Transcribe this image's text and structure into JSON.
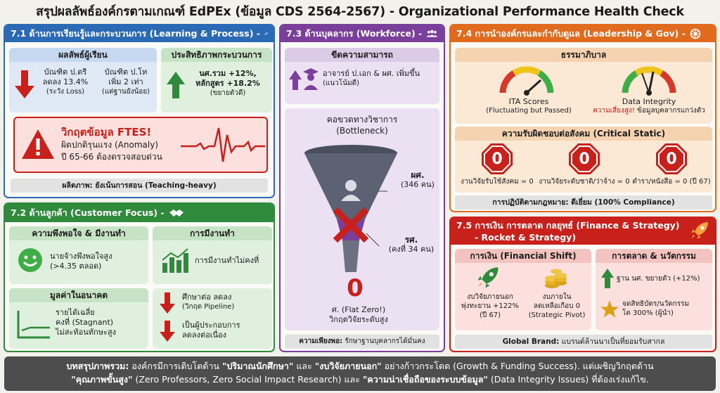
{
  "title": "สรุปผลลัพธ์องค์กรตามเกณฑ์ EdPEx (ข้อมูล CDS 2564-2567) - Organizational Performance Health Check",
  "s71": {
    "header": "7.1 ด้านการเรียนรู้และกระบวนการ (Learning & Process) -",
    "learner": {
      "title": "ผลลัพธ์ผู้เรียน",
      "left": [
        "บัณฑิต ป.ตรี",
        "ลดลง 13.4%",
        "(ระวัง Loss)"
      ],
      "right": [
        "บัณฑิต ป.โท",
        "เพิ่ม 2 เท่า",
        "(แต่ฐานยังน้อย)"
      ]
    },
    "process": {
      "title": "ประสิทธิภาพกระบวนการ",
      "lines": [
        "นศ.รวม +12%,",
        "หลักสูตร +18.2%",
        "(ขยายตัวดี)"
      ]
    },
    "alert": {
      "title": "วิกฤตข้อมูล FTES!",
      "lines": [
        "ผิดปกติรุนแรง (Anomaly)",
        "ปี 65-66 ต้องตรวจสอบด่วน"
      ]
    },
    "footer": "ผลิตภาพ: ยังเน้นการสอน (Teaching-heavy)"
  },
  "s72": {
    "header": "7.2 ด้านลูกค้า (Customer Focus) -",
    "satisfaction": {
      "title": "ความพึงพอใจ & มีงานทำ",
      "lines": [
        "นายจ้างพึงพอใจสูง",
        "(>4.35 ตลอด)"
      ]
    },
    "employment": {
      "title": "การมีงานทำ",
      "text": "การมีงานทำไม่คงที่"
    },
    "future": {
      "title": "มูลค่าในอนาคต",
      "lines": [
        "รายได้เฉลี่ย",
        "คงที่ (Stagnant)",
        "ไม่สะท้อนทักษะสูง"
      ]
    },
    "pipeline": {
      "a": [
        "ศึกษาต่อ ลดลง",
        "(วิกฤต Pipeline)"
      ],
      "b": [
        "เป็นผู้ประกอบการ",
        "ลดลงต่อเนื่อง"
      ]
    }
  },
  "s73": {
    "header": "7.3 ด้านบุคลากร (Workforce) -",
    "capability": {
      "title": "ขีดความสามารถ",
      "lines": [
        "อาจารย์ ป.เอก & ผศ. เพิ่มขึ้น",
        "(แนวโน้มดี)"
      ]
    },
    "bottleneck": {
      "title": [
        "คอขวดทางวิชาการ",
        "(Bottleneck)"
      ],
      "asst": [
        "ผศ.",
        "(346 คน)"
      ],
      "assoc": [
        "รศ.",
        "(คงที่ 34 คน)"
      ],
      "zero": "0",
      "zero_lines": [
        "ศ. (Flat Zero!)",
        "วิกฤตวิจัยระดับสูง"
      ]
    },
    "footer": "ความเพียงพอ: รักษาฐานบุคลากรได้มั่นคง",
    "footer_label": "ความเพียงพอ:",
    "footer_text": " รักษาฐานบุคลากรได้มั่นคง"
  },
  "s74": {
    "header": "7.4 การนำองค์กรและกำกับดูแล (Leadership & Gov) -",
    "governance": {
      "title": "ธรรมาภิบาล",
      "ita": [
        "ITA Scores",
        "(Fluctuating but Passed)"
      ],
      "di": [
        "Data Integrity"
      ],
      "di_warn": "ความเสี่ยงสูง!",
      "di_note": " ข้อมูลบุคลากรแกว่งตัว"
    },
    "social": {
      "title": "ความรับผิดชอบต่อสังคม (Critical Static)",
      "items": [
        {
          "value": "0",
          "label": "งานวิจัยรับใช้สังคม = 0"
        },
        {
          "value": "0",
          "label": "งานวิจัยระดับชาติ/ว่าจ้าง = 0"
        },
        {
          "value": "0",
          "label": "ตำรา/หนังสือ = 0 (ปี 67)"
        }
      ]
    },
    "footer": "การปฏิบัติตามกฎหมาย: ดีเยี่ยม (100% Compliance)"
  },
  "s75": {
    "header": [
      "7.5 การเงิน การตลาด กลยุทธ์ (Finance & Strategy)",
      "- Rocket & Strategy)"
    ],
    "finance": {
      "title": "การเงิน (Financial Shift)",
      "a": [
        "งบวิจัยภายนอก",
        "พุ่งทะยาน +122%",
        "(ปี 67)"
      ],
      "b": [
        "งบภายใน",
        "ลดเหลือเกือบ 0",
        "(Strategic Pivot)"
      ]
    },
    "marketing": {
      "title": "การตลาด & นวัตกรรม",
      "a": "ฐาน นศ. ขยายตัว (+12%)",
      "b": [
        "จดสิทธิบัตร/นวัตกรรม",
        "โต 300% (ผู้นำ)"
      ]
    },
    "footer": "Global Brand: แบรนด์ล้านนาเป็นที่ยอมรับสากล",
    "footer_label": "Global Brand:",
    "footer_text": " แบรนด์ล้านนาเป็นที่ยอมรับสากล"
  },
  "summary": {
    "p1": "บทสรุปภาพรวม:",
    "p2": " องค์กรมีการเติบโตด้าน ",
    "p3": "\"ปริมาณนักศึกษา\"",
    "p4": " และ ",
    "p5": "\"งบวิจัยภายนอก\"",
    "p6": " อย่างก้าวกระโดด (Growth & Funding Success). แต่เผชิญวิกฤตด้าน",
    "p7": "\"คุณภาพขั้นสูง\"",
    "p8": " (Zero Professors, Zero Social Impact Research) และ ",
    "p9": "\"ความน่าเชื่อถือของระบบข้อมูล\"",
    "p10": " (Data Integrity Issues) ที่ต้องเร่งแก้ไข."
  },
  "colors": {
    "blue": "#2a6ab5",
    "green": "#2f8a3b",
    "purple": "#7a3f9a",
    "orange": "#e06a1e",
    "red": "#c8201a"
  }
}
